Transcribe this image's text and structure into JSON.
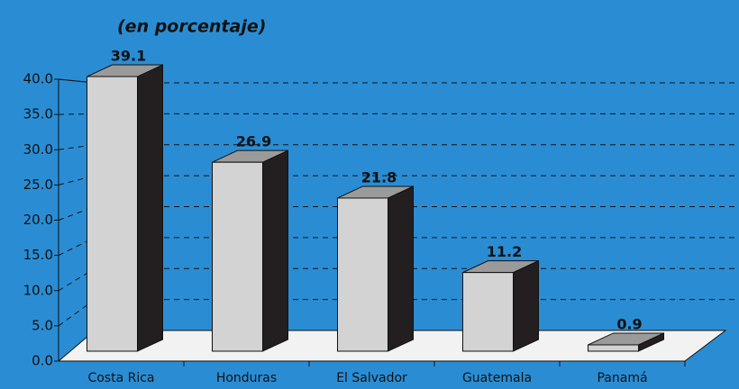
{
  "chart_data": {
    "type": "bar3d",
    "title": "(en porcentaje)",
    "categories": [
      "Costa Rica",
      "Honduras",
      "El Salvador",
      "Guatemala",
      "Panamá"
    ],
    "values": [
      39.1,
      26.9,
      21.8,
      11.2,
      0.9
    ],
    "colors": {
      "front": "#d3d3d3",
      "top": "#9a9a9a",
      "side": "#231f20"
    },
    "ylim": [
      0,
      40
    ],
    "yticks": [
      {
        "value": 0,
        "label": "0.0"
      },
      {
        "value": 5,
        "label": "5.0"
      },
      {
        "value": 10,
        "label": "10.0"
      },
      {
        "value": 15,
        "label": "15.0"
      },
      {
        "value": 20,
        "label": "20.0"
      },
      {
        "value": 25,
        "label": "25.0"
      },
      {
        "value": 30,
        "label": "30.0"
      },
      {
        "value": 35,
        "label": "35.0"
      },
      {
        "value": 40,
        "label": "40.0"
      }
    ],
    "grid": true
  }
}
